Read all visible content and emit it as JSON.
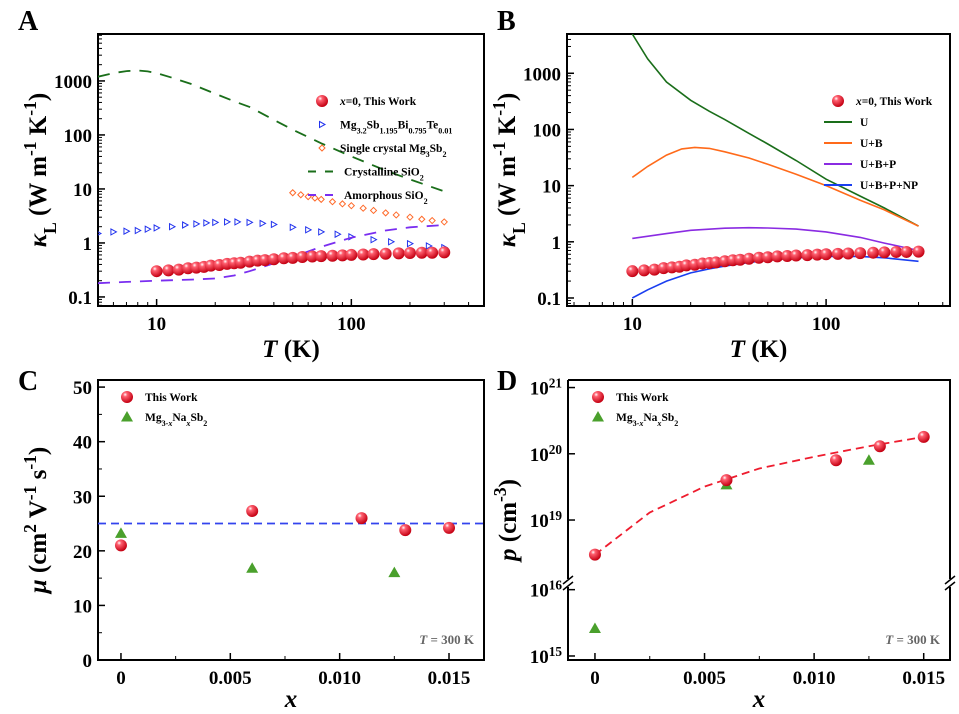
{
  "colors": {
    "red": "#ee1c2e",
    "blue_tri": "#2233ee",
    "orange": "#ff6a2a",
    "green_dash": "#1a6e1a",
    "purple": "#7a2ef0",
    "U": "#1a6e1a",
    "UB": "#ff6a1a",
    "UBP": "#8a2be2",
    "UBPNP": "#1a3ef0",
    "green_tri": "#4aa02c",
    "fit_blue": "#3344ee",
    "fit_red": "#ee1c2e"
  },
  "chart_data": [
    {
      "panel": "A",
      "type": "line",
      "xscale": "log",
      "yscale": "log",
      "xlim": [
        5,
        480
      ],
      "ylim": [
        0.068,
        7400
      ],
      "xticks": [
        {
          "v": 10,
          "label": "10"
        },
        {
          "v": 100,
          "label": "100"
        }
      ],
      "yticks": [
        {
          "v": 0.1,
          "label": "0.1"
        },
        {
          "v": 1,
          "label": "1"
        },
        {
          "v": 10,
          "label": "10"
        },
        {
          "v": 100,
          "label": "100"
        },
        {
          "v": 1000,
          "label": "1000"
        }
      ],
      "xlabel": "*T* (K)",
      "ylabel": "*κ*_{L} (W m^{-1} K^{-1})",
      "legend": "top-right",
      "series": [
        {
          "name": "*x*=0, This Work",
          "style": "sphere",
          "color": "red",
          "x": [
            10,
            11.5,
            13,
            14.5,
            16,
            17.5,
            19,
            21,
            23,
            25,
            27,
            30,
            33,
            36,
            40,
            45,
            50,
            56,
            63,
            70,
            80,
            90,
            100,
            115,
            130,
            150,
            175,
            200,
            230,
            260,
            300
          ],
          "y": [
            0.3,
            0.31,
            0.32,
            0.34,
            0.35,
            0.36,
            0.38,
            0.39,
            0.41,
            0.42,
            0.43,
            0.45,
            0.47,
            0.48,
            0.5,
            0.52,
            0.53,
            0.55,
            0.56,
            0.57,
            0.58,
            0.59,
            0.6,
            0.61,
            0.62,
            0.63,
            0.64,
            0.65,
            0.66,
            0.66,
            0.67
          ]
        },
        {
          "name": "Mg_{3.2}Sb_{1.195}Bi_{0.795}Te_{0.01}",
          "style": "open-tri-right",
          "color": "blue_tri",
          "x": [
            5,
            6,
            7,
            8,
            9,
            10,
            12,
            14,
            16,
            18,
            20,
            23,
            26,
            30,
            35,
            40,
            50,
            60,
            70,
            85,
            100,
            130,
            160,
            200,
            250,
            300
          ],
          "y": [
            1.5,
            1.6,
            1.65,
            1.7,
            1.8,
            1.9,
            2.0,
            2.15,
            2.25,
            2.35,
            2.4,
            2.45,
            2.45,
            2.4,
            2.3,
            2.2,
            1.95,
            1.75,
            1.6,
            1.45,
            1.3,
            1.15,
            1.05,
            0.97,
            0.88,
            0.82
          ]
        },
        {
          "name": "Single crystal Mg_{3}Sb_{2}",
          "style": "open-diamond",
          "color": "orange",
          "x": [
            50,
            55,
            60,
            65,
            70,
            80,
            90,
            100,
            115,
            130,
            150,
            170,
            200,
            230,
            260,
            300
          ],
          "y": [
            8.5,
            7.8,
            7.2,
            6.8,
            6.4,
            5.8,
            5.3,
            4.9,
            4.4,
            4.0,
            3.6,
            3.3,
            3.0,
            2.75,
            2.6,
            2.45
          ]
        },
        {
          "name": "Crystalline SiO_{2}",
          "style": "dash",
          "color": "green_dash",
          "x": [
            5,
            6,
            7,
            8,
            9,
            10,
            12,
            15,
            20,
            25,
            30,
            40,
            50,
            70,
            100,
            150,
            200,
            300
          ],
          "y": [
            1200,
            1400,
            1520,
            1560,
            1500,
            1400,
            1150,
            880,
            580,
            420,
            330,
            190,
            125,
            70,
            40,
            22,
            15,
            9
          ]
        },
        {
          "name": "Amorphous SiO_{2}",
          "style": "dash",
          "color": "purple",
          "x": [
            5,
            7,
            10,
            15,
            20,
            25,
            30,
            40,
            50,
            70,
            100,
            150,
            200,
            300
          ],
          "y": [
            0.18,
            0.19,
            0.2,
            0.21,
            0.22,
            0.25,
            0.3,
            0.42,
            0.55,
            0.85,
            1.25,
            1.7,
            1.95,
            2.15
          ]
        }
      ]
    },
    {
      "panel": "B",
      "type": "line",
      "xscale": "log",
      "yscale": "log",
      "xlim": [
        4.6,
        436
      ],
      "ylim": [
        0.072,
        5000
      ],
      "xticks": [
        {
          "v": 10,
          "label": "10"
        },
        {
          "v": 100,
          "label": "100"
        }
      ],
      "yticks": [
        {
          "v": 0.1,
          "label": "0.1"
        },
        {
          "v": 1,
          "label": "1"
        },
        {
          "v": 10,
          "label": "10"
        },
        {
          "v": 100,
          "label": "100"
        },
        {
          "v": 1000,
          "label": "1000"
        }
      ],
      "xlabel": "*T* (K)",
      "ylabel": "*κ*_{L} (W m^{-1} K^{-1})",
      "legend": "top-right",
      "series": [
        {
          "name": "*x*=0, This Work",
          "style": "sphere",
          "color": "red",
          "x": [
            10,
            11.5,
            13,
            14.5,
            16,
            17.5,
            19,
            21,
            23,
            25,
            27,
            30,
            33,
            36,
            40,
            45,
            50,
            56,
            63,
            70,
            80,
            90,
            100,
            115,
            130,
            150,
            175,
            200,
            230,
            260,
            300
          ],
          "y": [
            0.3,
            0.31,
            0.32,
            0.34,
            0.35,
            0.36,
            0.38,
            0.39,
            0.41,
            0.42,
            0.43,
            0.45,
            0.47,
            0.48,
            0.5,
            0.52,
            0.53,
            0.55,
            0.56,
            0.57,
            0.58,
            0.59,
            0.6,
            0.61,
            0.62,
            0.63,
            0.64,
            0.65,
            0.66,
            0.66,
            0.67
          ]
        },
        {
          "name": "U",
          "style": "line",
          "color": "U",
          "x": [
            10,
            12,
            15,
            20,
            25,
            30,
            40,
            50,
            70,
            100,
            150,
            200,
            300
          ],
          "y": [
            5000,
            1800,
            700,
            330,
            210,
            150,
            85,
            55,
            28,
            13,
            6.5,
            4,
            1.9
          ]
        },
        {
          "name": "U+B",
          "style": "line",
          "color": "UB",
          "x": [
            10,
            12,
            15,
            18,
            21,
            25,
            30,
            40,
            50,
            70,
            100,
            150,
            200,
            300
          ],
          "y": [
            14,
            22,
            35,
            45,
            48,
            46,
            40,
            31,
            24,
            16,
            10,
            5.5,
            3.7,
            1.9
          ]
        },
        {
          "name": "U+B+P",
          "style": "line",
          "color": "UBP",
          "x": [
            10,
            15,
            20,
            30,
            40,
            50,
            70,
            100,
            150,
            200,
            300
          ],
          "y": [
            1.15,
            1.4,
            1.6,
            1.75,
            1.78,
            1.76,
            1.68,
            1.5,
            1.2,
            0.95,
            0.7
          ]
        },
        {
          "name": "U+B+P+NP",
          "style": "line",
          "color": "UBPNP",
          "x": [
            10,
            12,
            15,
            20,
            25,
            30,
            40,
            50,
            70,
            100,
            150,
            200,
            300
          ],
          "y": [
            0.1,
            0.14,
            0.2,
            0.28,
            0.33,
            0.37,
            0.43,
            0.47,
            0.52,
            0.55,
            0.55,
            0.52,
            0.45
          ]
        }
      ]
    },
    {
      "panel": "C",
      "type": "scatter",
      "xscale": "linear",
      "yscale": "linear",
      "xlim": [
        -0.00105,
        0.0166
      ],
      "ylim": [
        0,
        51.3
      ],
      "xticks": [
        {
          "v": 0,
          "label": "0"
        },
        {
          "v": 0.005,
          "label": "0.005"
        },
        {
          "v": 0.01,
          "label": "0.010"
        },
        {
          "v": 0.015,
          "label": "0.015"
        }
      ],
      "yticks": [
        {
          "v": 0,
          "label": "0"
        },
        {
          "v": 10,
          "label": "10"
        },
        {
          "v": 20,
          "label": "20"
        },
        {
          "v": 30,
          "label": "30"
        },
        {
          "v": 40,
          "label": "40"
        },
        {
          "v": 50,
          "label": "50"
        }
      ],
      "xlabel": "*x*",
      "ylabel": "*μ* (cm^{2} V^{-1} s^{-1})",
      "legend": "top-left",
      "annotation": "*T* = 300 K",
      "series": [
        {
          "name": "This Work",
          "style": "sphere",
          "color": "red",
          "x": [
            0,
            0.006,
            0.011,
            0.013,
            0.015
          ],
          "y": [
            21,
            27.3,
            26,
            23.8,
            24.2
          ]
        },
        {
          "name": "Mg_{3-*x*}Na_{*x*}Sb_{2}",
          "style": "filled-tri",
          "color": "green_tri",
          "x": [
            0,
            0.006,
            0.0125
          ],
          "y": [
            23.2,
            16.8,
            16
          ]
        },
        {
          "style": "hline-dash",
          "color": "fit_blue",
          "x": [
            -0.00105,
            0.0166
          ],
          "y": [
            25,
            25
          ]
        }
      ]
    },
    {
      "panel": "D",
      "type": "scatter",
      "xscale": "linear",
      "yscale": "log-broken",
      "xlim": [
        -0.00123,
        0.0162
      ],
      "y_segments": [
        [
          870000000000000.0,
          1.26e+16
        ],
        [
          1.12e+18,
          1.3e+21
        ]
      ],
      "xticks": [
        {
          "v": 0,
          "label": "0"
        },
        {
          "v": 0.005,
          "label": "0.005"
        },
        {
          "v": 0.01,
          "label": "0.010"
        },
        {
          "v": 0.015,
          "label": "0.015"
        }
      ],
      "yticks": [
        {
          "v": 1000000000000000.0,
          "label": "10^{15}"
        },
        {
          "v": 1e+16,
          "label": "10^{16}"
        },
        {
          "v": 1e+19,
          "label": "10^{19}"
        },
        {
          "v": 1e+20,
          "label": "10^{20}"
        },
        {
          "v": 1e+21,
          "label": "10^{21}"
        }
      ],
      "xlabel": "*x*",
      "ylabel": "*p* (cm^{-3})",
      "legend": "top-left",
      "annotation": "*T* = 300 K",
      "series": [
        {
          "name": "This Work",
          "style": "sphere",
          "color": "red",
          "x": [
            0,
            0.006,
            0.011,
            0.013,
            0.015
          ],
          "y": [
            3e+18,
            4e+19,
            8e+19,
            1.3e+20,
            1.8e+20
          ]
        },
        {
          "name": "Mg_{3-*x*}Na_{*x*}Sb_{2}",
          "style": "filled-tri",
          "color": "green_tri",
          "x": [
            0,
            0.006,
            0.0125
          ],
          "y": [
            2600000000000000.0,
            3.4e+19,
            8e+19
          ]
        },
        {
          "style": "fit-dash",
          "color": "fit_red",
          "x": [
            0,
            0.0025,
            0.005,
            0.0075,
            0.01,
            0.0125,
            0.015
          ],
          "y": [
            3e+18,
            1.3e+19,
            3.2e+19,
            6e+19,
            9e+19,
            1.3e+20,
            1.8e+20
          ]
        }
      ]
    }
  ]
}
